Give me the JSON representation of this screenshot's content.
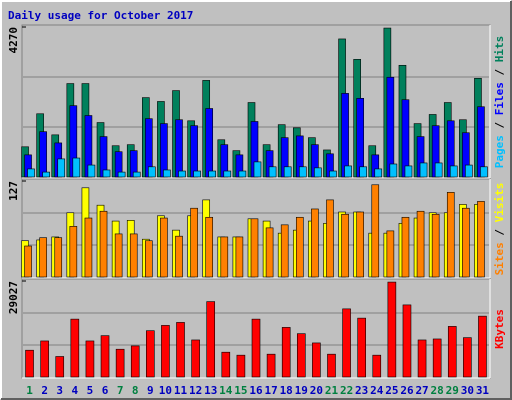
{
  "chart_data": {
    "type": "bar",
    "title": "Daily usage for October 2017",
    "categories": [
      "1",
      "2",
      "3",
      "4",
      "5",
      "6",
      "7",
      "8",
      "9",
      "10",
      "11",
      "12",
      "13",
      "14",
      "15",
      "16",
      "17",
      "18",
      "19",
      "20",
      "21",
      "22",
      "23",
      "24",
      "25",
      "26",
      "27",
      "28",
      "29",
      "30",
      "31"
    ],
    "category_colors": [
      "#008040",
      "#0000c0",
      "#0000c0",
      "#0000c0",
      "#0000c0",
      "#0000c0",
      "#008040",
      "#008040",
      "#0000c0",
      "#0000c0",
      "#0000c0",
      "#0000c0",
      "#0000c0",
      "#008040",
      "#008040",
      "#0000c0",
      "#0000c0",
      "#0000c0",
      "#0000c0",
      "#0000c0",
      "#008040",
      "#008040",
      "#0000c0",
      "#0000c0",
      "#0000c0",
      "#0000c0",
      "#0000c0",
      "#008040",
      "#008040",
      "#0000c0",
      "#0000c0"
    ],
    "legend_separator": " / ",
    "grid": true,
    "panels": [
      {
        "ylim": [
          0,
          4270
        ],
        "yticks": [
          4270
        ],
        "series": [
          {
            "name": "Pages",
            "color": "#00c0ff",
            "values": [
              230,
              140,
              515,
              540,
              340,
              200,
              140,
              140,
              290,
              200,
              170,
              170,
              170,
              170,
              170,
              430,
              290,
              290,
              290,
              260,
              170,
              315,
              290,
              230,
              370,
              315,
              400,
              400,
              315,
              340,
              290
            ]
          },
          {
            "name": "Files",
            "color": "#0000ff",
            "values": [
              630,
              1290,
              970,
              2030,
              1750,
              1150,
              720,
              750,
              1660,
              1520,
              1630,
              1460,
              1950,
              920,
              630,
              1580,
              750,
              1120,
              1170,
              920,
              660,
              2380,
              2240,
              630,
              2840,
              2200,
              1150,
              1460,
              1600,
              1260,
              2000
            ]
          },
          {
            "name": "Hits",
            "color": "#00805c",
            "values": [
              860,
              1800,
              1200,
              2660,
              2660,
              1550,
              890,
              920,
              2260,
              2150,
              2460,
              1600,
              2750,
              1060,
              750,
              2120,
              920,
              1490,
              1400,
              1120,
              770,
              3930,
              3350,
              890,
              4240,
              3180,
              1520,
              1780,
              2120,
              1630,
              2810
            ]
          }
        ]
      },
      {
        "ylim": [
          0,
          127
        ],
        "yticks": [
          127
        ],
        "series": [
          {
            "name": "Sites",
            "color": "#ff8000",
            "values": [
              41,
              52,
              52,
              67,
              78,
              87,
              57,
              57,
              48,
              78,
              54,
              91,
              79,
              53,
              53,
              77,
              65,
              69,
              79,
              90,
              102,
              83,
              86,
              122,
              61,
              79,
              87,
              83,
              112,
              91,
              100
            ]
          },
          {
            "name": "Visits",
            "color": "#ffff00",
            "values": [
              48,
              49,
              53,
              85,
              118,
              95,
              74,
              75,
              50,
              81,
              62,
              81,
              102,
              53,
              53,
              77,
              74,
              58,
              62,
              74,
              71,
              86,
              86,
              58,
              58,
              71,
              78,
              85,
              85,
              96,
              96
            ]
          }
        ]
      },
      {
        "ylim": [
          0,
          29027
        ],
        "yticks": [
          29027
        ],
        "series": [
          {
            "name": "KBytes",
            "color": "#ff0000",
            "values": [
              8100,
              10900,
              6200,
              17500,
              10900,
              12500,
              8400,
              9400,
              14000,
              15600,
              16500,
              11200,
              22800,
              7500,
              6600,
              17500,
              6900,
              15000,
              13100,
              10300,
              6900,
              20600,
              17800,
              6600,
              28700,
              21800,
              11200,
              11500,
              15300,
              11900,
              18400
            ]
          }
        ]
      }
    ]
  }
}
